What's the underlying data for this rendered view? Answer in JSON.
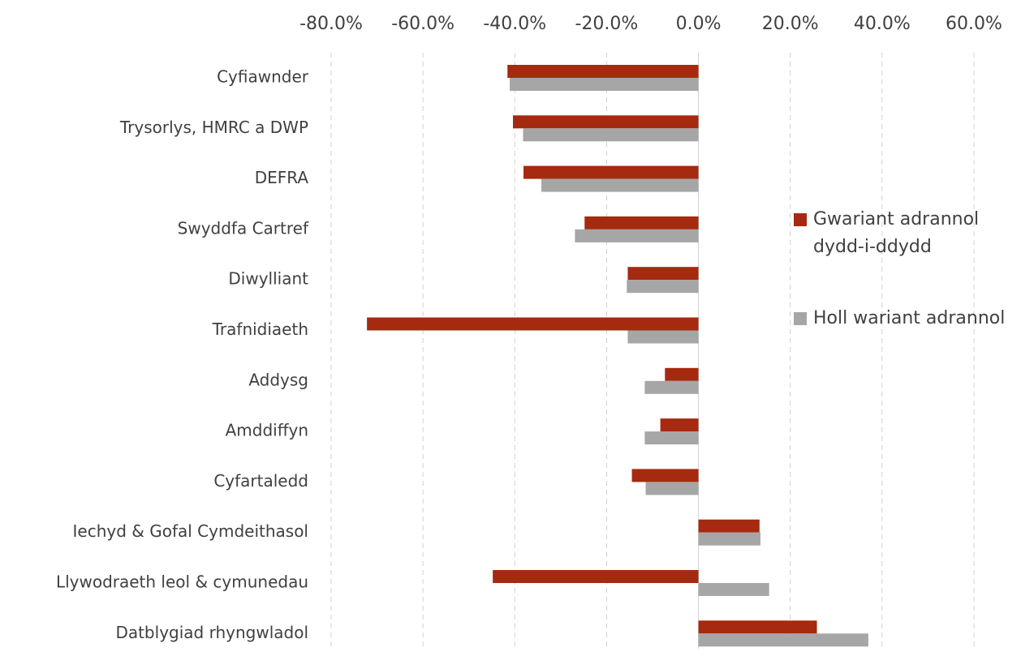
{
  "chart_data": {
    "type": "hbar",
    "categories": [
      "Cyfiawnder",
      "Trysorlys, HMRC a DWP",
      "DEFRA",
      "Swyddfa Cartref",
      "Diwylliant",
      "Trafnidiaeth",
      "Addysg",
      "Amddiffyn",
      "Cyfartaledd",
      "Iechyd & Gofal Cymdeithasol",
      "Llywodraeth leol & cymunedau",
      "Datblygiad rhyngwladol"
    ],
    "series": [
      {
        "name": "Gwariant adrannol dydd-i-ddydd",
        "color": "#a52a0f",
        "values": [
          -41.6,
          -40.4,
          -38.1,
          -24.8,
          -15.4,
          -72.2,
          -7.3,
          -8.3,
          -14.5,
          13.3,
          -44.8,
          25.8
        ]
      },
      {
        "name": "Holl wariant adrannol",
        "color": "#a6a6a6",
        "values": [
          -41.1,
          -38.2,
          -34.2,
          -26.9,
          -15.6,
          -15.4,
          -11.7,
          -11.7,
          -11.5,
          13.5,
          15.4,
          37.0
        ]
      }
    ],
    "xlim": [
      -80,
      60
    ],
    "xticks": [
      {
        "value": -80,
        "label": "-80.0%"
      },
      {
        "value": -60,
        "label": "-60.0%"
      },
      {
        "value": -40,
        "label": "-40.0%"
      },
      {
        "value": -20,
        "label": "-20.0%"
      },
      {
        "value": 0,
        "label": "0.0%"
      },
      {
        "value": 20,
        "label": "20.0%"
      },
      {
        "value": 40,
        "label": "40.0%"
      },
      {
        "value": 60,
        "label": "60.0%"
      }
    ],
    "grid": true,
    "legend": "right"
  }
}
